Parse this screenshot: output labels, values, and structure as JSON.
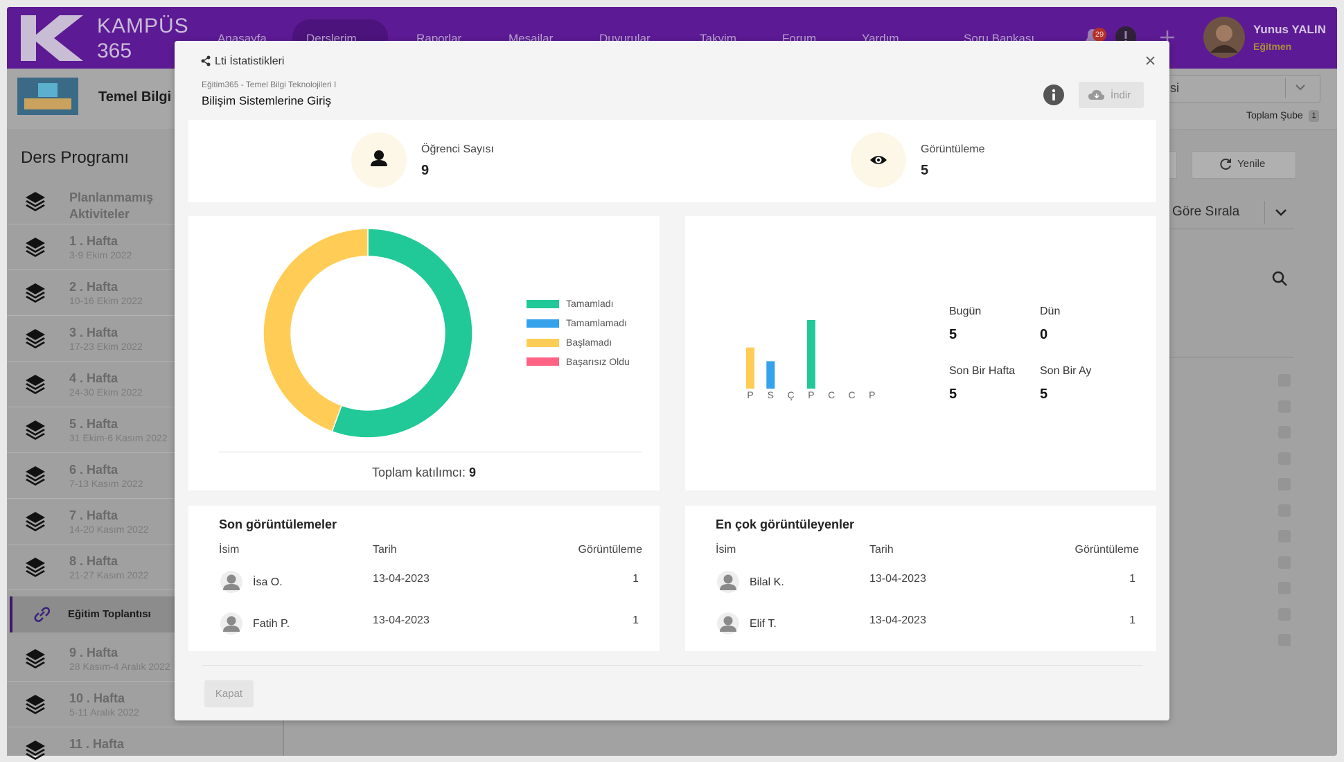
{
  "app": {
    "brand": {
      "name": "KAMPÜS",
      "number": "365"
    },
    "nav": [
      "Anasayfa",
      "Derslerim",
      "Raporlar",
      "Mesajlar",
      "Duyurular",
      "Takvim",
      "Forum",
      "Yardım",
      "Soru Bankası"
    ],
    "notification_count": 29,
    "user": {
      "name": "Yunus YALIN",
      "role": "Eğitmen"
    },
    "course": {
      "title": "Temel Bilgi",
      "selection": "si",
      "branch_label": "Toplam Şube",
      "branch_count": 1
    },
    "sidebar": {
      "title": "Ders Programı",
      "items": [
        {
          "label": "Planlanmamış Aktiviteler"
        },
        {
          "label": "1 . Hafta",
          "date": "3-9 Ekim 2022"
        },
        {
          "label": "2 . Hafta",
          "date": "10-16 Ekim 2022"
        },
        {
          "label": "3 . Hafta",
          "date": "17-23 Ekim 2022"
        },
        {
          "label": "4 . Hafta",
          "date": "24-30 Ekim 2022"
        },
        {
          "label": "5 . Hafta",
          "date": "31 Ekim-6 Kasım 2022"
        },
        {
          "label": "6 . Hafta",
          "date": "7-13 Kasım 2022"
        },
        {
          "label": "7 . Hafta",
          "date": "14-20 Kasım 2022"
        },
        {
          "label": "8 . Hafta",
          "date": "21-27 Kasım 2022"
        },
        {
          "label": "Eğitim Toplantısı"
        },
        {
          "label": "9 . Hafta",
          "date": "28 Kasım-4 Aralık 2022"
        },
        {
          "label": "10 . Hafta",
          "date": "5-11 Aralık 2022"
        },
        {
          "label": "11 . Hafta"
        }
      ]
    },
    "toolbar": {
      "refresh": "Yenile",
      "sort": "Göre Sırala"
    }
  },
  "modal": {
    "title": "Lti İstatistikleri",
    "breadcrumb": "Eğitim365 - Temel Bilgi Teknolojileri I",
    "heading": "Bilişim Sistemlerine Giriş",
    "download": "İndir",
    "stats": [
      {
        "label": "Öğrenci Sayısı",
        "value": 9
      },
      {
        "label": "Görüntüleme",
        "value": 5
      }
    ],
    "total": {
      "label": "Toplam katılımcı:",
      "value": 9
    },
    "periods": [
      {
        "label": "Bugün",
        "value": 5
      },
      {
        "label": "Dün",
        "value": 0
      },
      {
        "label": "Son Bir Hafta",
        "value": 5
      },
      {
        "label": "Son Bir Ay",
        "value": 5
      }
    ],
    "tables": [
      {
        "title": "Son görüntülemeler",
        "columns": [
          "İsim",
          "Tarih",
          "Görüntüleme"
        ],
        "rows": [
          [
            "İsa O.",
            "13-04-2023",
            1
          ],
          [
            "Fatih P.",
            "13-04-2023",
            1
          ]
        ]
      },
      {
        "title": "En çok görüntüleyenler",
        "columns": [
          "İsim",
          "Tarih",
          "Görüntüleme"
        ],
        "rows": [
          [
            "Bilal K.",
            "13-04-2023",
            1
          ],
          [
            "Elif T.",
            "13-04-2023",
            1
          ]
        ]
      }
    ],
    "close": "Kapat"
  },
  "chart_data": [
    {
      "type": "donut",
      "categories": [
        "Tamamladı",
        "Tamamlamadı",
        "Başlamadı",
        "Başarısız Oldu"
      ],
      "values": [
        5,
        0,
        4,
        0
      ],
      "colors": [
        "#20c997",
        "#36a2eb",
        "#ffcd56",
        "#ff6384"
      ],
      "legend": "right"
    },
    {
      "type": "bar",
      "categories": [
        "P",
        "S",
        "Ç",
        "P",
        "C",
        "C",
        "P"
      ],
      "values": [
        3,
        2,
        0,
        5,
        0,
        0,
        0
      ],
      "colors": [
        "#ffcd56",
        "#36a2eb",
        "#ff6384",
        "#20c997",
        "#9966ff",
        "#ff9f40",
        "#c9cbcf"
      ]
    }
  ]
}
